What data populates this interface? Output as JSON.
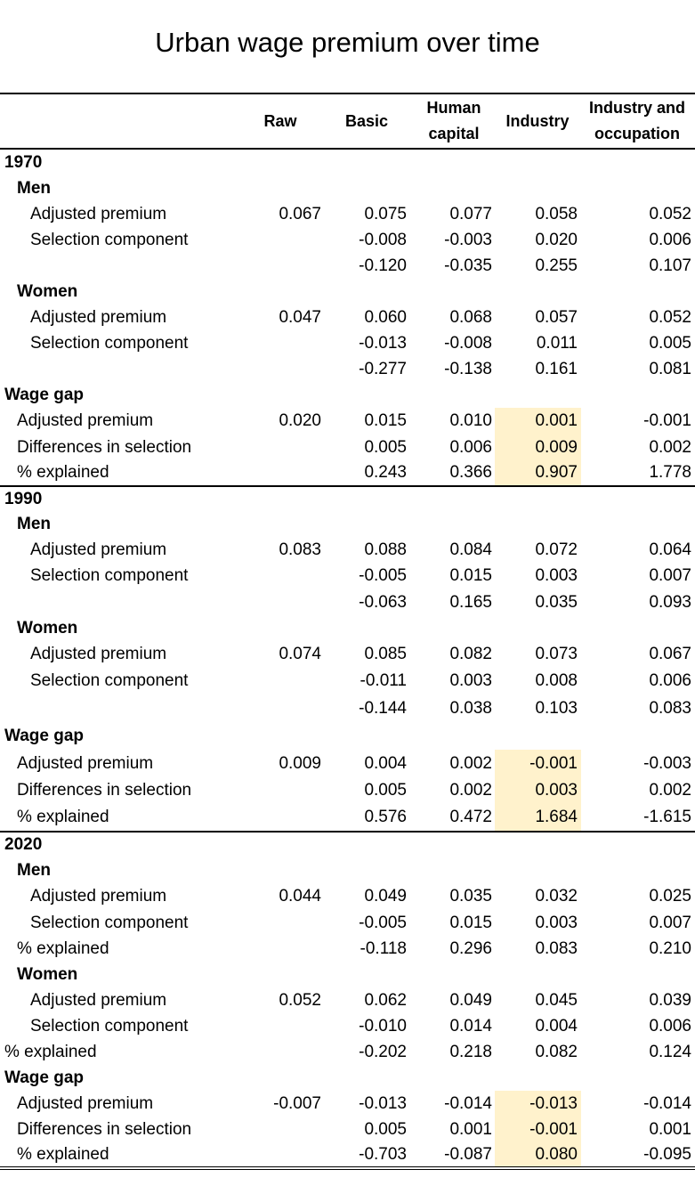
{
  "chart_data": {
    "type": "table",
    "title": "Urban wage premium over time",
    "columns": [
      "Raw",
      "Basic",
      "Human capital",
      "Industry",
      "Industry and occupation"
    ],
    "column_header_lines": [
      [
        "Raw"
      ],
      [
        "Basic"
      ],
      [
        "Human",
        "capital"
      ],
      [
        "Industry"
      ],
      [
        "Industry and",
        "occupation"
      ]
    ],
    "highlight": {
      "column": "Industry",
      "color": "#fff2cc",
      "rows": "Wage gap blocks"
    },
    "rows": [
      {
        "label": "1970",
        "level": 0,
        "bold": true,
        "values": [
          "",
          "",
          "",
          "",
          ""
        ]
      },
      {
        "label": "Men",
        "level": 1,
        "bold": true,
        "values": [
          "",
          "",
          "",
          "",
          ""
        ]
      },
      {
        "label": "Adjusted premium",
        "level": 2,
        "values": [
          "0.067",
          "0.075",
          "0.077",
          "0.058",
          "0.052"
        ]
      },
      {
        "label": "Selection component",
        "level": 2,
        "values": [
          "",
          "-0.008",
          "-0.003",
          "0.020",
          "0.006"
        ]
      },
      {
        "label": "",
        "level": 2,
        "values": [
          "",
          "-0.120",
          "-0.035",
          "0.255",
          "0.107"
        ]
      },
      {
        "label": "Women",
        "level": 1,
        "bold": true,
        "values": [
          "",
          "",
          "",
          "",
          ""
        ]
      },
      {
        "label": "Adjusted premium",
        "level": 2,
        "values": [
          "0.047",
          "0.060",
          "0.068",
          "0.057",
          "0.052"
        ]
      },
      {
        "label": "Selection component",
        "level": 2,
        "values": [
          "",
          "-0.013",
          "-0.008",
          "0.011",
          "0.005"
        ]
      },
      {
        "label": "",
        "level": 2,
        "values": [
          "",
          "-0.277",
          "-0.138",
          "0.161",
          "0.081"
        ]
      },
      {
        "label": "Wage gap",
        "level": 0,
        "bold": true,
        "values": [
          "",
          "",
          "",
          "",
          ""
        ]
      },
      {
        "label": "Adjusted premium",
        "level": 1,
        "values": [
          "0.020",
          "0.015",
          "0.010",
          "0.001",
          "-0.001"
        ]
      },
      {
        "label": "Differences in selection",
        "level": 1,
        "values": [
          "",
          "0.005",
          "0.006",
          "0.009",
          "0.002"
        ]
      },
      {
        "label": "% explained",
        "level": 1,
        "values": [
          "",
          "0.243",
          "0.366",
          "0.907",
          "1.778"
        ]
      },
      {
        "label": "1990",
        "level": 0,
        "bold": true,
        "values": [
          "",
          "",
          "",
          "",
          ""
        ]
      },
      {
        "label": "Men",
        "level": 1,
        "bold": true,
        "values": [
          "",
          "",
          "",
          "",
          ""
        ]
      },
      {
        "label": "Adjusted premium",
        "level": 2,
        "values": [
          "0.083",
          "0.088",
          "0.084",
          "0.072",
          "0.064"
        ]
      },
      {
        "label": "Selection component",
        "level": 2,
        "values": [
          "",
          "-0.005",
          "0.015",
          "0.003",
          "0.007"
        ]
      },
      {
        "label": "",
        "level": 2,
        "values": [
          "",
          "-0.063",
          "0.165",
          "0.035",
          "0.093"
        ]
      },
      {
        "label": "Women",
        "level": 1,
        "bold": true,
        "values": [
          "",
          "",
          "",
          "",
          ""
        ]
      },
      {
        "label": "Adjusted premium",
        "level": 2,
        "values": [
          "0.074",
          "0.085",
          "0.082",
          "0.073",
          "0.067"
        ]
      },
      {
        "label": "Selection component",
        "level": 2,
        "values": [
          "",
          "-0.011",
          "0.003",
          "0.008",
          "0.006"
        ]
      },
      {
        "label": "",
        "level": 2,
        "values": [
          "",
          "-0.144",
          "0.038",
          "0.103",
          "0.083"
        ]
      },
      {
        "label": "Wage gap",
        "level": 0,
        "bold": true,
        "values": [
          "",
          "",
          "",
          "",
          ""
        ]
      },
      {
        "label": "Adjusted premium",
        "level": 1,
        "values": [
          "0.009",
          "0.004",
          "0.002",
          "-0.001",
          "-0.003"
        ]
      },
      {
        "label": "Differences in selection",
        "level": 1,
        "values": [
          "",
          "0.005",
          "0.002",
          "0.003",
          "0.002"
        ]
      },
      {
        "label": "% explained",
        "level": 1,
        "values": [
          "",
          "0.576",
          "0.472",
          "1.684",
          "-1.615"
        ]
      },
      {
        "label": "2020",
        "level": 0,
        "bold": true,
        "values": [
          "",
          "",
          "",
          "",
          ""
        ]
      },
      {
        "label": "Men",
        "level": 1,
        "bold": true,
        "values": [
          "",
          "",
          "",
          "",
          ""
        ]
      },
      {
        "label": "Adjusted premium",
        "level": 2,
        "values": [
          "0.044",
          "0.049",
          "0.035",
          "0.032",
          "0.025"
        ]
      },
      {
        "label": "Selection component",
        "level": 2,
        "values": [
          "",
          "-0.005",
          "0.015",
          "0.003",
          "0.007"
        ]
      },
      {
        "label": "% explained",
        "level": 1,
        "values": [
          "",
          "-0.118",
          "0.296",
          "0.083",
          "0.210"
        ]
      },
      {
        "label": "Women",
        "level": 1,
        "bold": true,
        "values": [
          "",
          "",
          "",
          "",
          ""
        ]
      },
      {
        "label": "Adjusted premium",
        "level": 2,
        "values": [
          "0.052",
          "0.062",
          "0.049",
          "0.045",
          "0.039"
        ]
      },
      {
        "label": "Selection component",
        "level": 2,
        "values": [
          "",
          "-0.010",
          "0.014",
          "0.004",
          "0.006"
        ]
      },
      {
        "label": "% explained",
        "level": 0,
        "values": [
          "",
          "-0.202",
          "0.218",
          "0.082",
          "0.124"
        ]
      },
      {
        "label": "Wage gap",
        "level": 0,
        "bold": true,
        "values": [
          "",
          "",
          "",
          "",
          ""
        ]
      },
      {
        "label": "Adjusted premium",
        "level": 1,
        "values": [
          "-0.007",
          "-0.013",
          "-0.014",
          "-0.013",
          "-0.014"
        ]
      },
      {
        "label": "Differences in selection",
        "level": 1,
        "values": [
          "",
          "0.005",
          "0.001",
          "-0.001",
          "0.001"
        ]
      },
      {
        "label": "% explained",
        "level": 1,
        "values": [
          "",
          "-0.703",
          "-0.087",
          "0.080",
          "-0.095"
        ]
      }
    ]
  }
}
